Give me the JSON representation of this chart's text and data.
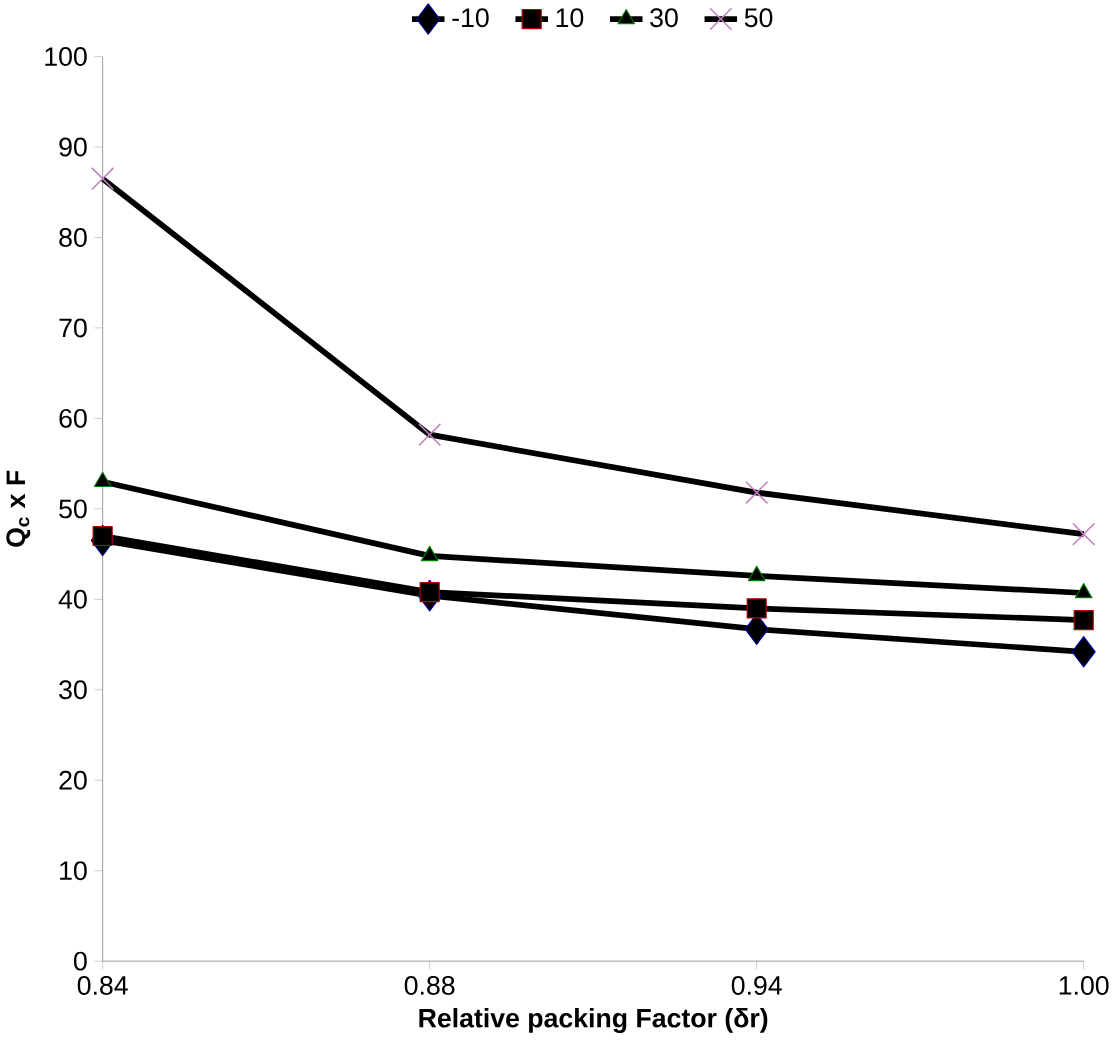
{
  "chart_data": {
    "type": "line",
    "xlabel": "Relative packing Factor (δr)",
    "ylabel": "Q$_{c}$ x F",
    "categories": [
      "0.84",
      "0.88",
      "0.94",
      "1.00"
    ],
    "series": [
      {
        "name": "-10",
        "color": "#000000",
        "marker": "diamond",
        "values": [
          46.5,
          40.4,
          36.7,
          34.2
        ]
      },
      {
        "name": "10",
        "color": "#000000",
        "marker": "square",
        "values": [
          47,
          40.8,
          39,
          37.7
        ]
      },
      {
        "name": "30",
        "color": "#000000",
        "marker": "triangle",
        "values": [
          53,
          44.8,
          42.6,
          40.7
        ]
      },
      {
        "name": "50",
        "color": "#000000",
        "marker": "cross",
        "values": [
          86.5,
          58.2,
          51.8,
          47.2
        ]
      }
    ],
    "ylim": [
      0,
      100
    ],
    "yticks": [
      0,
      10,
      20,
      30,
      40,
      50,
      60,
      70,
      80,
      90,
      100
    ],
    "grid": false,
    "legend": "top",
    "line_style": "solid"
  }
}
